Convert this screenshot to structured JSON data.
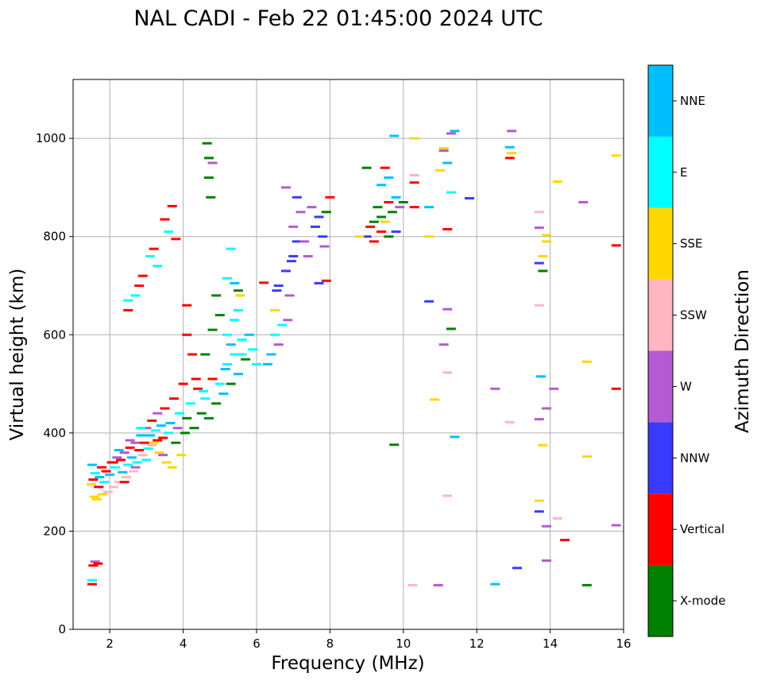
{
  "chart_data": {
    "type": "scatter",
    "title": "NAL CADI - Feb 22 01:45:00 2024 UTC",
    "xlabel": "Frequency (MHz)",
    "ylabel": "Virtual height (km)",
    "xlim": [
      1,
      16
    ],
    "ylim": [
      0,
      1120
    ],
    "xticks": [
      2,
      4,
      6,
      8,
      10,
      12,
      14,
      16
    ],
    "yticks": [
      0,
      200,
      400,
      600,
      800,
      1000
    ],
    "grid": true,
    "colorbar": {
      "label": "Azimuth Direction",
      "categories": [
        {
          "name": "X-mode",
          "color": "#008000"
        },
        {
          "name": "Vertical",
          "color": "#ff0000"
        },
        {
          "name": "NNW",
          "color": "#3a3aff"
        },
        {
          "name": "W",
          "color": "#b45ad2"
        },
        {
          "name": "SSW",
          "color": "#ffb6c1"
        },
        {
          "name": "SSE",
          "color": "#ffd700"
        },
        {
          "name": "E",
          "color": "#00ffff"
        },
        {
          "name": "NNE",
          "color": "#00bfff"
        }
      ]
    },
    "points": [
      [
        1.52,
        92,
        "Vertical"
      ],
      [
        1.52,
        100,
        "E"
      ],
      [
        1.55,
        130,
        "Vertical"
      ],
      [
        1.6,
        138,
        "W"
      ],
      [
        1.68,
        134,
        "Vertical"
      ],
      [
        1.5,
        295,
        "SSE"
      ],
      [
        1.55,
        305,
        "Vertical"
      ],
      [
        1.6,
        318,
        "E"
      ],
      [
        1.52,
        335,
        "NNE"
      ],
      [
        1.58,
        270,
        "SSE"
      ],
      [
        1.65,
        265,
        "SSE"
      ],
      [
        1.7,
        290,
        "Vertical"
      ],
      [
        1.72,
        310,
        "NNE"
      ],
      [
        1.78,
        330,
        "Vertical"
      ],
      [
        1.8,
        275,
        "SSE"
      ],
      [
        1.85,
        300,
        "E"
      ],
      [
        1.9,
        322,
        "Vertical"
      ],
      [
        1.95,
        280,
        "SSW"
      ],
      [
        2.0,
        315,
        "NNE"
      ],
      [
        2.05,
        340,
        "Vertical"
      ],
      [
        2.1,
        290,
        "SSW"
      ],
      [
        2.15,
        330,
        "E"
      ],
      [
        2.2,
        350,
        "W"
      ],
      [
        2.25,
        300,
        "SSW"
      ],
      [
        2.3,
        345,
        "Vertical"
      ],
      [
        2.35,
        320,
        "NNE"
      ],
      [
        2.4,
        360,
        "W"
      ],
      [
        2.45,
        310,
        "SSW"
      ],
      [
        2.5,
        335,
        "E"
      ],
      [
        2.55,
        370,
        "Vertical"
      ],
      [
        2.6,
        350,
        "NNE"
      ],
      [
        2.65,
        322,
        "SSW"
      ],
      [
        2.7,
        380,
        "W"
      ],
      [
        2.75,
        340,
        "E"
      ],
      [
        2.8,
        365,
        "Vertical"
      ],
      [
        2.85,
        395,
        "NNE"
      ],
      [
        2.9,
        355,
        "SSW"
      ],
      [
        2.95,
        380,
        "Vertical"
      ],
      [
        3.0,
        410,
        "W"
      ],
      [
        3.05,
        368,
        "E"
      ],
      [
        3.1,
        395,
        "NNE"
      ],
      [
        3.15,
        425,
        "Vertical"
      ],
      [
        3.2,
        380,
        "SSE"
      ],
      [
        3.25,
        405,
        "E"
      ],
      [
        3.3,
        440,
        "W"
      ],
      [
        3.35,
        360,
        "SSE"
      ],
      [
        3.4,
        415,
        "NNE"
      ],
      [
        3.45,
        390,
        "Vertical"
      ],
      [
        3.5,
        450,
        "Vertical"
      ],
      [
        3.55,
        340,
        "SSE"
      ],
      [
        3.6,
        400,
        "E"
      ],
      [
        3.65,
        420,
        "NNE"
      ],
      [
        3.7,
        330,
        "SSE"
      ],
      [
        3.75,
        470,
        "Vertical"
      ],
      [
        3.8,
        380,
        "X-mode"
      ],
      [
        3.85,
        410,
        "W"
      ],
      [
        3.9,
        440,
        "E"
      ],
      [
        3.95,
        355,
        "SSE"
      ],
      [
        4.0,
        500,
        "Vertical"
      ],
      [
        4.05,
        400,
        "X-mode"
      ],
      [
        2.1,
        340,
        "Vertical"
      ],
      [
        2.4,
        300,
        "Vertical"
      ],
      [
        2.7,
        330,
        "W"
      ],
      [
        3.0,
        345,
        "E"
      ],
      [
        3.3,
        385,
        "Vertical"
      ],
      [
        2.25,
        365,
        "NNE"
      ],
      [
        2.55,
        385,
        "W"
      ],
      [
        2.85,
        410,
        "E"
      ],
      [
        3.15,
        375,
        "SSW"
      ],
      [
        3.45,
        355,
        "W"
      ],
      [
        4.1,
        430,
        "X-mode"
      ],
      [
        4.2,
        460,
        "E"
      ],
      [
        4.3,
        410,
        "X-mode"
      ],
      [
        4.4,
        490,
        "Vertical"
      ],
      [
        4.5,
        440,
        "X-mode"
      ],
      [
        4.6,
        470,
        "E"
      ],
      [
        4.7,
        430,
        "X-mode"
      ],
      [
        4.8,
        510,
        "Vertical"
      ],
      [
        4.9,
        460,
        "X-mode"
      ],
      [
        5.0,
        500,
        "E"
      ],
      [
        5.1,
        480,
        "NNE"
      ],
      [
        5.2,
        540,
        "E"
      ],
      [
        5.3,
        500,
        "X-mode"
      ],
      [
        5.4,
        560,
        "E"
      ],
      [
        5.5,
        520,
        "NNE"
      ],
      [
        5.6,
        590,
        "E"
      ],
      [
        5.7,
        550,
        "X-mode"
      ],
      [
        5.8,
        600,
        "NNE"
      ],
      [
        5.9,
        570,
        "E"
      ],
      [
        6.0,
        540,
        "E"
      ],
      [
        4.6,
        560,
        "X-mode"
      ],
      [
        4.8,
        610,
        "X-mode"
      ],
      [
        5.0,
        640,
        "X-mode"
      ],
      [
        5.2,
        600,
        "E"
      ],
      [
        5.4,
        630,
        "E"
      ],
      [
        5.5,
        650,
        "E"
      ],
      [
        4.9,
        680,
        "X-mode"
      ],
      [
        5.3,
        580,
        "NNE"
      ],
      [
        5.6,
        560,
        "E"
      ],
      [
        5.15,
        530,
        "NNE"
      ],
      [
        4.25,
        560,
        "Vertical"
      ],
      [
        4.1,
        600,
        "Vertical"
      ],
      [
        4.1,
        660,
        "Vertical"
      ],
      [
        4.35,
        510,
        "Vertical"
      ],
      [
        4.55,
        485,
        "E"
      ],
      [
        6.3,
        540,
        "NNE"
      ],
      [
        6.4,
        560,
        "NNE"
      ],
      [
        6.5,
        600,
        "E"
      ],
      [
        6.5,
        650,
        "SSE"
      ],
      [
        6.6,
        580,
        "W"
      ],
      [
        6.7,
        620,
        "E"
      ],
      [
        6.6,
        700,
        "NNW"
      ],
      [
        6.8,
        730,
        "NNW"
      ],
      [
        6.9,
        680,
        "W"
      ],
      [
        7.0,
        760,
        "NNW"
      ],
      [
        7.1,
        790,
        "NNW"
      ],
      [
        7.0,
        820,
        "W"
      ],
      [
        7.2,
        850,
        "W"
      ],
      [
        7.1,
        880,
        "NNW"
      ],
      [
        6.8,
        900,
        "W"
      ],
      [
        7.5,
        860,
        "W"
      ],
      [
        7.6,
        820,
        "NNW"
      ],
      [
        7.8,
        800,
        "NNW"
      ],
      [
        7.9,
        850,
        "X-mode"
      ],
      [
        8.0,
        880,
        "Vertical"
      ],
      [
        7.7,
        840,
        "NNW"
      ],
      [
        7.85,
        780,
        "W"
      ],
      [
        6.2,
        706,
        "Vertical"
      ],
      [
        6.95,
        750,
        "NNW"
      ],
      [
        7.3,
        790,
        "W"
      ],
      [
        7.9,
        710,
        "Vertical"
      ],
      [
        7.7,
        705,
        "NNW"
      ],
      [
        7.4,
        760,
        "W"
      ],
      [
        6.55,
        690,
        "NNW"
      ],
      [
        6.85,
        630,
        "W"
      ],
      [
        9.0,
        800,
        "NNW"
      ],
      [
        9.1,
        820,
        "Vertical"
      ],
      [
        9.3,
        860,
        "X-mode"
      ],
      [
        9.4,
        840,
        "X-mode"
      ],
      [
        9.5,
        830,
        "SSE"
      ],
      [
        9.6,
        870,
        "Vertical"
      ],
      [
        9.7,
        850,
        "X-mode"
      ],
      [
        9.4,
        905,
        "NNE"
      ],
      [
        9.5,
        940,
        "Vertical"
      ],
      [
        9.0,
        940,
        "X-mode"
      ],
      [
        9.8,
        880,
        "NNE"
      ],
      [
        9.9,
        860,
        "W"
      ],
      [
        9.2,
        790,
        "Vertical"
      ],
      [
        9.6,
        800,
        "X-mode"
      ],
      [
        9.8,
        810,
        "NNW"
      ],
      [
        10.3,
        1000,
        "SSE"
      ],
      [
        10.3,
        925,
        "SSW"
      ],
      [
        10.3,
        910,
        "Vertical"
      ],
      [
        10.3,
        860,
        "Vertical"
      ],
      [
        10.7,
        800,
        "SSE"
      ],
      [
        10.7,
        860,
        "NNE"
      ],
      [
        11.0,
        935,
        "SSE"
      ],
      [
        11.1,
        980,
        "SSE"
      ],
      [
        11.2,
        950,
        "NNE"
      ],
      [
        11.3,
        890,
        "E"
      ],
      [
        11.2,
        815,
        "Vertical"
      ],
      [
        11.4,
        1015,
        "NNE"
      ],
      [
        11.8,
        878,
        "NNW"
      ],
      [
        11.1,
        975,
        "W"
      ],
      [
        11.3,
        1010,
        "W"
      ],
      [
        10.7,
        668,
        "NNW"
      ],
      [
        11.2,
        652,
        "W"
      ],
      [
        11.3,
        612,
        "X-mode"
      ],
      [
        11.1,
        580,
        "W"
      ],
      [
        11.2,
        523,
        "SSW"
      ],
      [
        10.85,
        468,
        "SSE"
      ],
      [
        11.4,
        392,
        "NNE"
      ],
      [
        11.2,
        272,
        "SSW"
      ],
      [
        10.25,
        90,
        "SSW"
      ],
      [
        10.95,
        90,
        "W"
      ],
      [
        12.5,
        92,
        "NNE"
      ],
      [
        12.5,
        490,
        "W"
      ],
      [
        12.9,
        422,
        "SSW"
      ],
      [
        13.1,
        125,
        "NNW"
      ],
      [
        12.9,
        960,
        "Vertical"
      ],
      [
        12.95,
        970,
        "SSE"
      ],
      [
        12.9,
        982,
        "NNE"
      ],
      [
        12.95,
        1015,
        "W"
      ],
      [
        13.7,
        850,
        "SSW"
      ],
      [
        13.7,
        818,
        "W"
      ],
      [
        13.9,
        803,
        "SSE"
      ],
      [
        13.9,
        790,
        "SSE"
      ],
      [
        13.7,
        746,
        "NNW"
      ],
      [
        13.8,
        730,
        "X-mode"
      ],
      [
        13.8,
        760,
        "SSE"
      ],
      [
        13.7,
        660,
        "SSW"
      ],
      [
        13.75,
        515,
        "NNE"
      ],
      [
        13.9,
        450,
        "W"
      ],
      [
        14.1,
        490,
        "W"
      ],
      [
        13.7,
        428,
        "W"
      ],
      [
        13.8,
        375,
        "SSE"
      ],
      [
        13.7,
        262,
        "SSE"
      ],
      [
        13.7,
        240,
        "NNW"
      ],
      [
        13.9,
        210,
        "W"
      ],
      [
        13.9,
        140,
        "W"
      ],
      [
        14.2,
        226,
        "SSW"
      ],
      [
        14.4,
        182,
        "Vertical"
      ],
      [
        14.2,
        912,
        "SSE"
      ],
      [
        14.9,
        870,
        "W"
      ],
      [
        15.0,
        545,
        "SSE"
      ],
      [
        15.0,
        352,
        "SSE"
      ],
      [
        15.0,
        90,
        "X-mode"
      ],
      [
        15.8,
        965,
        "SSE"
      ],
      [
        15.8,
        782,
        "Vertical"
      ],
      [
        15.8,
        490,
        "Vertical"
      ],
      [
        15.8,
        212,
        "W"
      ],
      [
        9.75,
        376,
        "X-mode"
      ],
      [
        9.75,
        1005,
        "NNE"
      ],
      [
        4.65,
        990,
        "X-mode"
      ],
      [
        4.7,
        960,
        "X-mode"
      ],
      [
        4.7,
        920,
        "X-mode"
      ],
      [
        4.75,
        880,
        "X-mode"
      ],
      [
        4.8,
        950,
        "W"
      ],
      [
        3.7,
        862,
        "Vertical"
      ],
      [
        3.5,
        835,
        "Vertical"
      ],
      [
        3.2,
        775,
        "Vertical"
      ],
      [
        3.1,
        760,
        "E"
      ],
      [
        2.5,
        670,
        "E"
      ],
      [
        2.5,
        650,
        "Vertical"
      ],
      [
        2.8,
        700,
        "Vertical"
      ],
      [
        2.9,
        720,
        "Vertical"
      ],
      [
        3.3,
        740,
        "E"
      ],
      [
        3.6,
        810,
        "E"
      ],
      [
        3.8,
        795,
        "Vertical"
      ],
      [
        2.7,
        680,
        "E"
      ],
      [
        5.5,
        690,
        "X-mode"
      ],
      [
        5.2,
        715,
        "E"
      ],
      [
        5.4,
        705,
        "NNE"
      ],
      [
        5.3,
        775,
        "E"
      ],
      [
        5.55,
        680,
        "SSE"
      ],
      [
        8.8,
        800,
        "SSE"
      ],
      [
        9.4,
        810,
        "Vertical"
      ],
      [
        9.2,
        830,
        "X-mode"
      ],
      [
        9.6,
        920,
        "NNE"
      ],
      [
        10.0,
        870,
        "X-mode"
      ]
    ]
  }
}
